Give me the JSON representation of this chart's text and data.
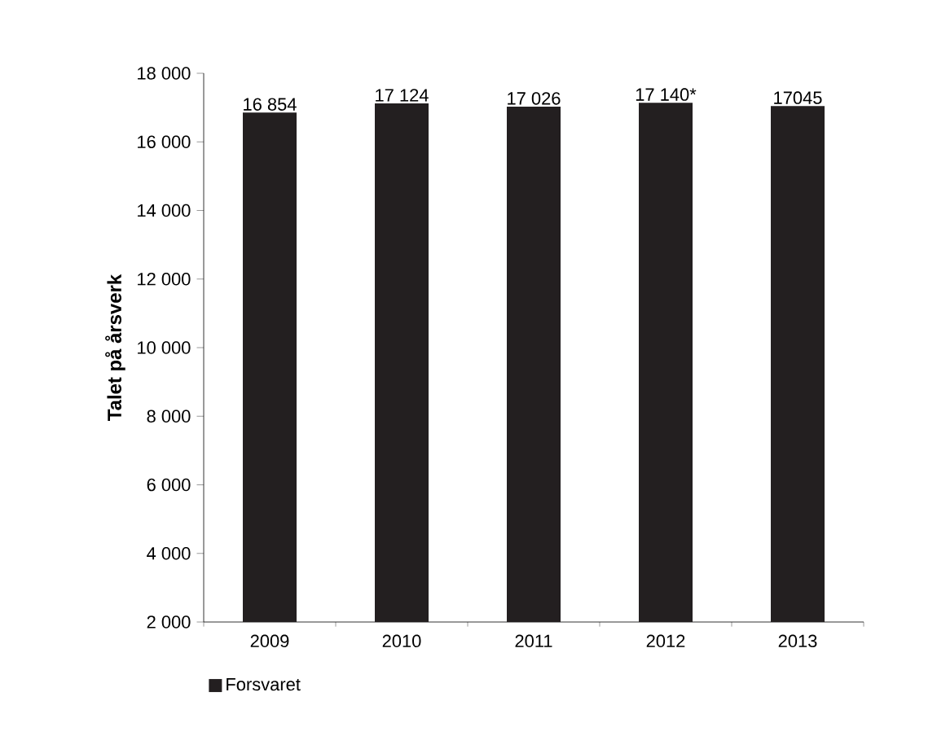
{
  "chart_data": {
    "type": "bar",
    "ylabel": "Talet på årsverk",
    "categories": [
      "2009",
      "2010",
      "2011",
      "2012",
      "2013"
    ],
    "series": [
      {
        "name": "Forsvaret",
        "color": "#231f20",
        "values": [
          16854,
          17124,
          17026,
          17140,
          17045
        ],
        "value_labels": [
          "16 854",
          "17 124",
          "17 026",
          "17 140*",
          "17045"
        ]
      }
    ],
    "ylim": [
      2000,
      18000
    ],
    "yticks": [
      {
        "value": 2000,
        "label": "2 000"
      },
      {
        "value": 4000,
        "label": "4 000"
      },
      {
        "value": 6000,
        "label": "6 000"
      },
      {
        "value": 8000,
        "label": "8 000"
      },
      {
        "value": 10000,
        "label": "10 000"
      },
      {
        "value": 12000,
        "label": "12 000"
      },
      {
        "value": 14000,
        "label": "14 000"
      },
      {
        "value": 16000,
        "label": "16 000"
      },
      {
        "value": 18000,
        "label": "18 000"
      }
    ],
    "grid": false,
    "legend": "bottom left"
  }
}
